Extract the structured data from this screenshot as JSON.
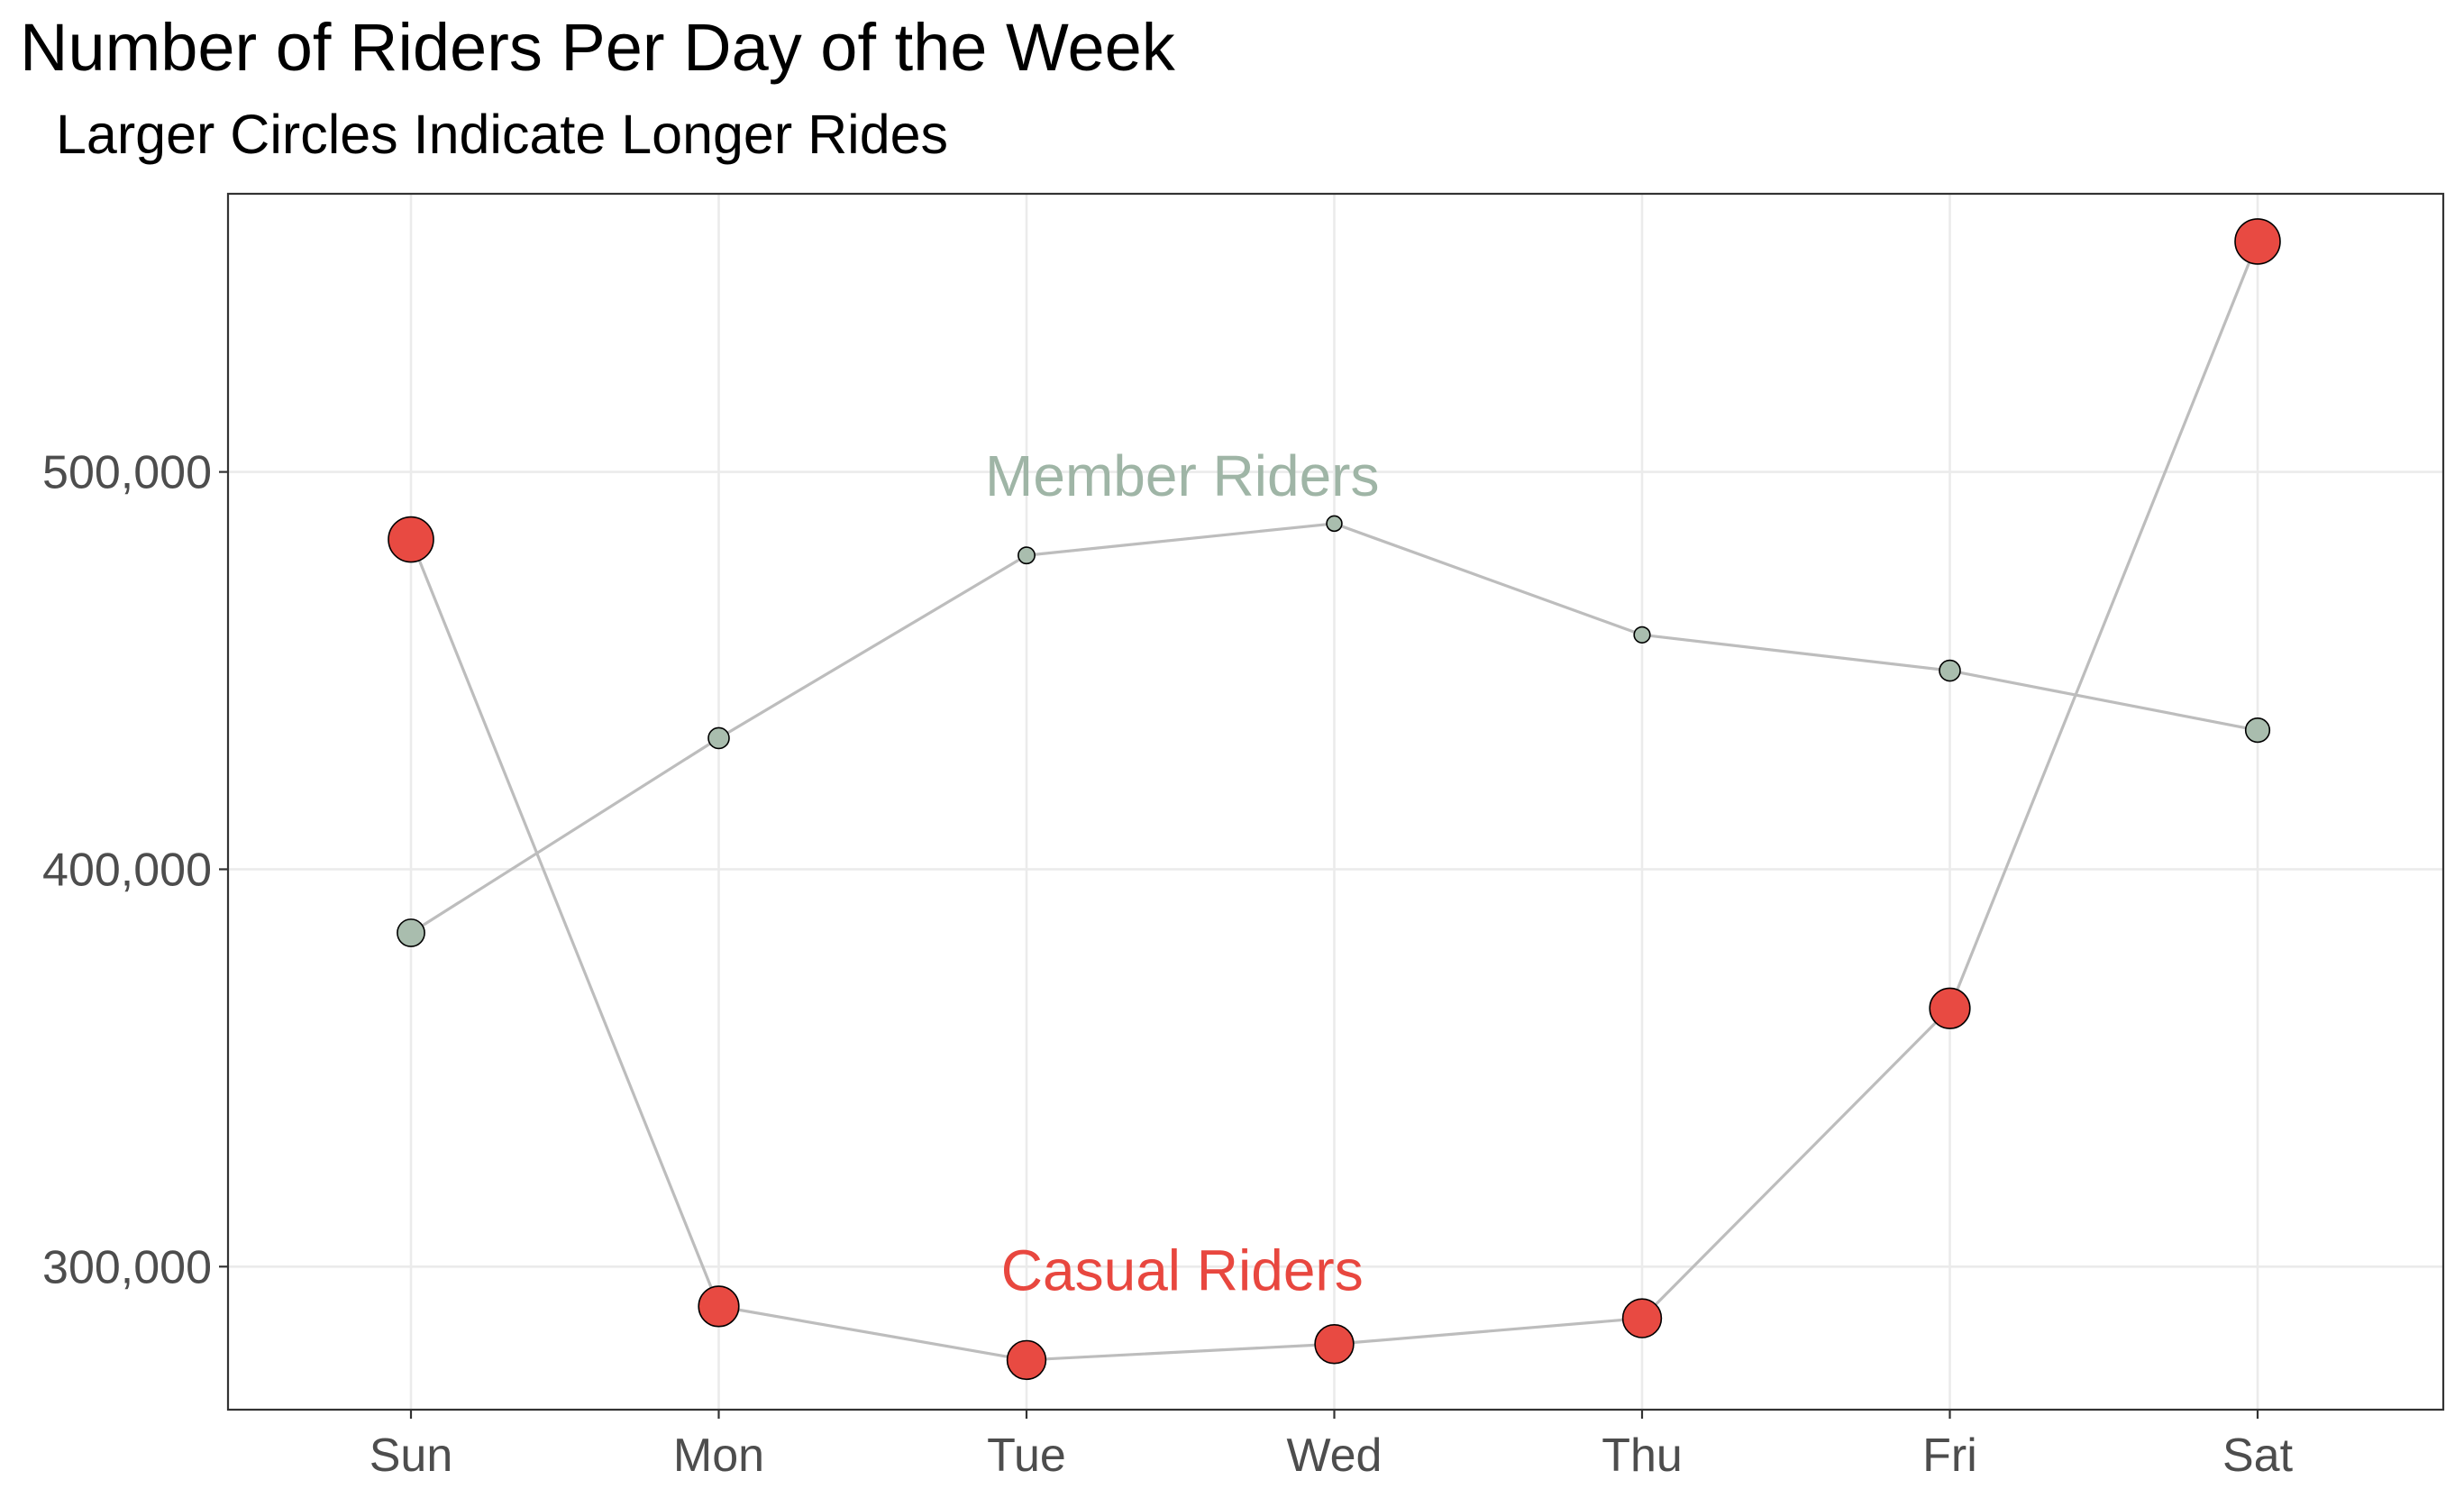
{
  "chart_data": {
    "type": "line",
    "title": "Number of Riders Per Day of the Week",
    "subtitle": "Larger Circles Indicate Longer Rides",
    "xlabel": "",
    "ylabel": "",
    "categories": [
      "Sun",
      "Mon",
      "Tue",
      "Wed",
      "Thu",
      "Fri",
      "Sat"
    ],
    "ylim": [
      264000,
      570000
    ],
    "yticks": [
      300000,
      400000,
      500000
    ],
    "ytick_labels": [
      "300,000",
      "400,000",
      "500,000"
    ],
    "grid": true,
    "legend": "none",
    "size_encoding": "Larger Circles Indicate Longer Rides",
    "series": [
      {
        "name": "Member Riders",
        "color": "#9fb5a6",
        "point_fill": "#a9bdae",
        "values": [
          384000,
          433000,
          479000,
          487000,
          459000,
          450000,
          435000
        ],
        "size_index": [
          0.45,
          0.25,
          0.12,
          0.08,
          0.1,
          0.25,
          0.35
        ],
        "annotation": {
          "text": "Member Riders",
          "x": "Wed",
          "y": 499000
        }
      },
      {
        "name": "Casual Riders",
        "color": "#e8473f",
        "point_fill": "#e84a42",
        "values": [
          483000,
          290000,
          276500,
          280500,
          287000,
          365000,
          558000
        ],
        "size_index": [
          1.0,
          0.85,
          0.8,
          0.8,
          0.8,
          0.85,
          1.0
        ],
        "annotation": {
          "text": "Casual Riders",
          "x": "Wed",
          "y": 299000
        }
      }
    ]
  }
}
